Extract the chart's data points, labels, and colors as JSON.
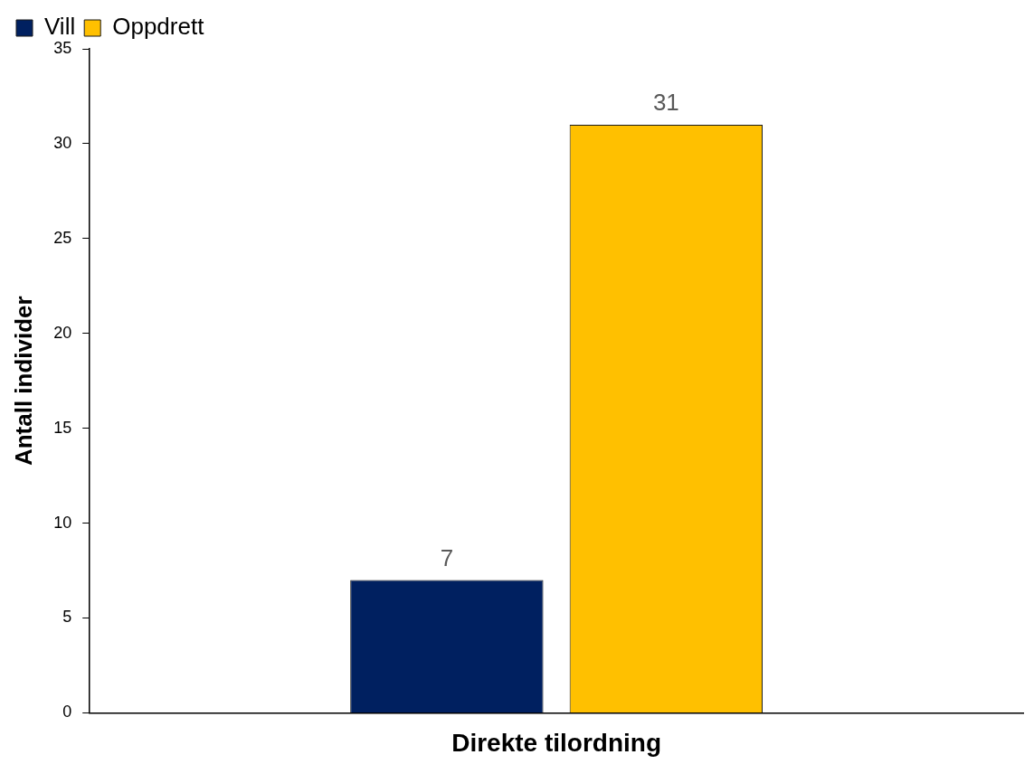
{
  "chart_data": {
    "type": "bar",
    "ylabel": "Antall individer",
    "categories": [
      "Direkte tilordning"
    ],
    "series": [
      {
        "name": "Vill",
        "color": "#002060",
        "values": [
          7
        ]
      },
      {
        "name": "Oppdrett",
        "color": "#ffc000",
        "values": [
          31
        ]
      }
    ],
    "ylim": [
      0,
      35
    ],
    "yticks": [
      0,
      5,
      10,
      15,
      20,
      25,
      30,
      35
    ],
    "grid": false,
    "legend": "top left",
    "data_labels": true
  }
}
